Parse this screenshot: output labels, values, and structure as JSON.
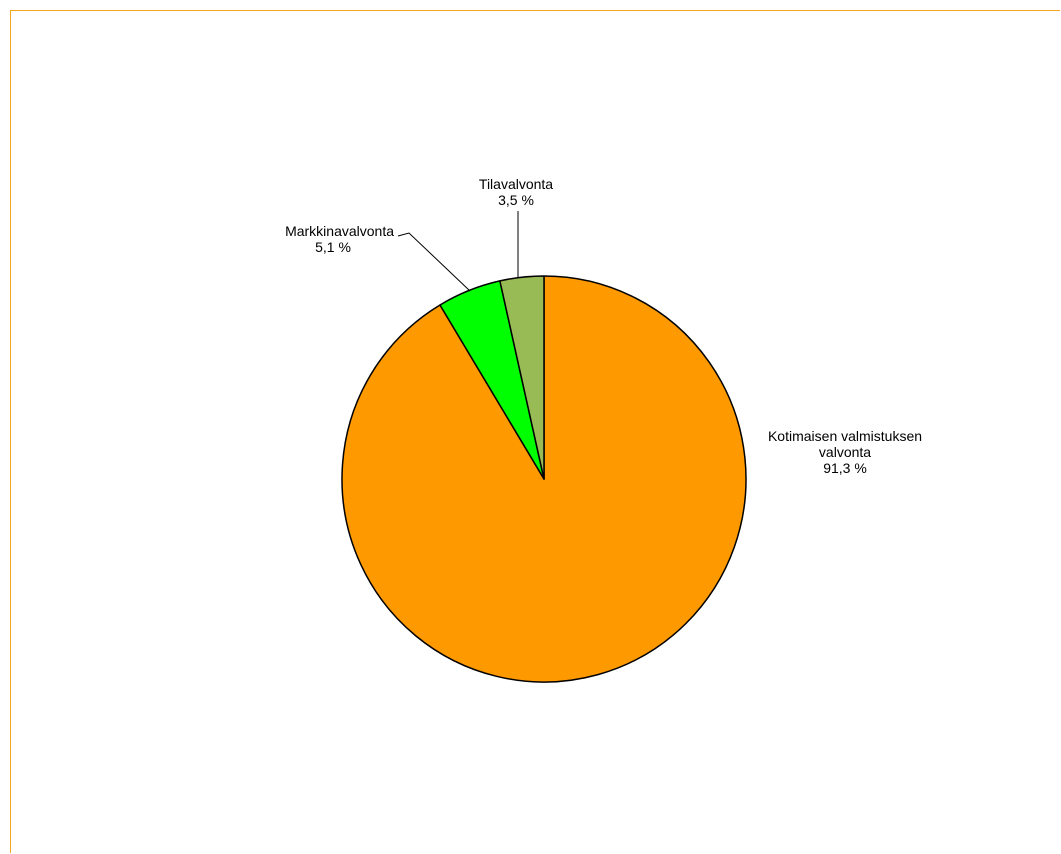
{
  "chart_data": {
    "type": "pie",
    "slices": [
      {
        "label": "Kotimaisen valmistuksen valvonta",
        "value": 91.3,
        "value_text": "91,3 %",
        "color": "#ff9900",
        "label_lines": [
          "Kotimaisen valmistuksen",
          "valvonta",
          "91,3 %"
        ]
      },
      {
        "label": "Markkinavalvonta",
        "value": 5.1,
        "value_text": "5,1 %",
        "color": "#00ff00",
        "label_lines": [
          "Markkinavalvonta",
          "5,1 %"
        ]
      },
      {
        "label": "Tilavalvonta",
        "value": 3.5,
        "value_text": "3,5 %",
        "color": "#99bb55",
        "label_lines": [
          "Tilavalvonta",
          "3,5 %"
        ]
      }
    ],
    "start_angle": "12 o'clock",
    "direction": "clockwise",
    "legend": "none"
  },
  "colors": {
    "frame_border": "#f3a31c",
    "slice_outline": "#000000"
  }
}
